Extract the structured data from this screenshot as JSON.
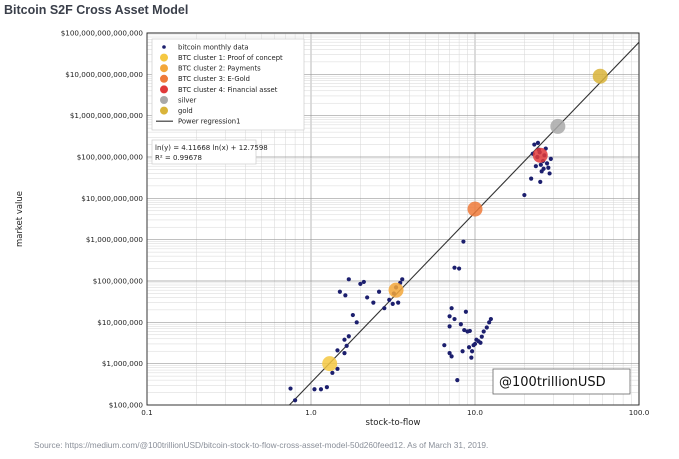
{
  "page": {
    "title": "Bitcoin S2F Cross Asset Model",
    "source": "Source: https://medium.com/@100trillionUSD/bitcoin-stock-to-flow-cross-asset-model-50d260feed12. As of March 31, 2019."
  },
  "chart_data": {
    "type": "scatter",
    "xlabel": "stock-to-flow",
    "ylabel": "market value",
    "xscale": "log",
    "yscale": "log",
    "xlim": [
      0.1,
      100
    ],
    "ylim": [
      100000,
      100000000000000
    ],
    "grid": true,
    "legend_position": "top-left",
    "x_tick_labels": [
      "0.1",
      "1.0",
      "10.0",
      "100.0"
    ],
    "y_tick_labels": [
      "$100,000",
      "$1,000,000",
      "$10,000,000",
      "$100,000,000",
      "$1,000,000,000",
      "$10,000,000,000",
      "$100,000,000,000",
      "$1,000,000,000,000",
      "$10,000,000,000,000",
      "$100,000,000,000,000"
    ],
    "legend": [
      {
        "label": "bitcoin monthly data",
        "marker": "dot",
        "color": "#1c1f6e"
      },
      {
        "label": "BTC cluster 1: Proof of concept",
        "marker": "circle",
        "color": "#f5c842"
      },
      {
        "label": "BTC cluster 2: Payments",
        "marker": "circle",
        "color": "#f3a73a"
      },
      {
        "label": "BTC cluster 3: E-Gold",
        "marker": "circle",
        "color": "#ee7a3a"
      },
      {
        "label": "BTC cluster 4: Financial asset",
        "marker": "circle",
        "color": "#e0393a"
      },
      {
        "label": "silver",
        "marker": "circle",
        "color": "#a9a9a9"
      },
      {
        "label": "gold",
        "marker": "circle",
        "color": "#d9b43a"
      },
      {
        "label": "Power regression1",
        "marker": "line",
        "color": "#333333"
      }
    ],
    "equation_lines": [
      "ln(y) = 4.11668 ln(x) + 12.7598",
      "R² = 0.99678"
    ],
    "regression": {
      "slope": 4.11668,
      "intercept": 12.7598
    },
    "watermark": "@100trillionUSD",
    "series": [
      {
        "name": "bitcoin monthly data",
        "points": [
          [
            0.75,
            250000
          ],
          [
            0.8,
            130000
          ],
          [
            1.05,
            240000
          ],
          [
            1.15,
            240000
          ],
          [
            1.25,
            270000
          ],
          [
            1.35,
            600000
          ],
          [
            1.45,
            750000
          ],
          [
            1.6,
            1800000
          ],
          [
            1.65,
            2700000
          ],
          [
            1.7,
            4600000
          ],
          [
            1.6,
            3800000
          ],
          [
            1.45,
            2100000
          ],
          [
            1.5,
            55000000
          ],
          [
            1.7,
            110000000
          ],
          [
            1.62,
            45000000
          ],
          [
            1.8,
            15000000
          ],
          [
            1.9,
            10000000
          ],
          [
            2.0,
            85000000
          ],
          [
            2.1,
            95000000
          ],
          [
            2.2,
            40000000
          ],
          [
            2.4,
            30000000
          ],
          [
            2.6,
            55000000
          ],
          [
            2.8,
            22000000
          ],
          [
            3.0,
            35000000
          ],
          [
            3.2,
            50000000
          ],
          [
            3.3,
            70000000
          ],
          [
            3.5,
            90000000
          ],
          [
            3.6,
            110000000
          ],
          [
            3.4,
            30000000
          ],
          [
            3.15,
            28000000
          ],
          [
            6.5,
            2800000
          ],
          [
            7.0,
            1800000
          ],
          [
            7.2,
            1500000
          ],
          [
            7.8,
            400000
          ],
          [
            8.0,
            200000000
          ],
          [
            7.5,
            210000000
          ],
          [
            8.5,
            900000000
          ],
          [
            9.0,
            6000000
          ],
          [
            9.3,
            6200000
          ],
          [
            9.6,
            2000000
          ],
          [
            10.0,
            3000000
          ],
          [
            10.5,
            3500000
          ],
          [
            11.0,
            4500000
          ],
          [
            11.3,
            6000000
          ],
          [
            11.8,
            7500000
          ],
          [
            12.2,
            10000000
          ],
          [
            12.5,
            12000000
          ],
          [
            7.0,
            14000000
          ],
          [
            7.2,
            22000000
          ],
          [
            7.5,
            12000000
          ],
          [
            7.0,
            8000000
          ],
          [
            8.2,
            9000000
          ],
          [
            8.4,
            2000000
          ],
          [
            8.6,
            6500000
          ],
          [
            8.8,
            18000000
          ],
          [
            9.2,
            2500000
          ],
          [
            9.5,
            1400000
          ],
          [
            9.8,
            2800000
          ],
          [
            10.2,
            3800000
          ],
          [
            10.8,
            3200000
          ],
          [
            20.0,
            12000000000
          ],
          [
            22.0,
            30000000000
          ],
          [
            22.5,
            120000000000
          ],
          [
            23.0,
            200000000000
          ],
          [
            23.5,
            60000000000
          ],
          [
            24.0,
            100000000000
          ],
          [
            24.5,
            150000000000
          ],
          [
            25.0,
            25000000000
          ],
          [
            25.5,
            45000000000
          ],
          [
            26.0,
            80000000000
          ],
          [
            26.5,
            110000000000
          ],
          [
            27.0,
            160000000000
          ],
          [
            27.5,
            70000000000
          ],
          [
            28.0,
            55000000000
          ],
          [
            28.5,
            40000000000
          ],
          [
            29.0,
            90000000000
          ],
          [
            24.8,
            130000000000
          ],
          [
            25.2,
            65000000000
          ],
          [
            24.2,
            220000000000
          ],
          [
            26.2,
            52000000000
          ]
        ]
      },
      {
        "name": "BTC cluster 1: Proof of concept",
        "points": [
          [
            1.3,
            1000000
          ]
        ]
      },
      {
        "name": "BTC cluster 2: Payments",
        "points": [
          [
            3.3,
            60000000
          ]
        ]
      },
      {
        "name": "BTC cluster 3: E-Gold",
        "points": [
          [
            10.0,
            5500000000
          ]
        ]
      },
      {
        "name": "BTC cluster 4: Financial asset",
        "points": [
          [
            25.0,
            110000000000
          ]
        ]
      },
      {
        "name": "silver",
        "points": [
          [
            32.0,
            550000000000
          ]
        ]
      },
      {
        "name": "gold",
        "points": [
          [
            58.0,
            9000000000000
          ]
        ]
      }
    ]
  }
}
